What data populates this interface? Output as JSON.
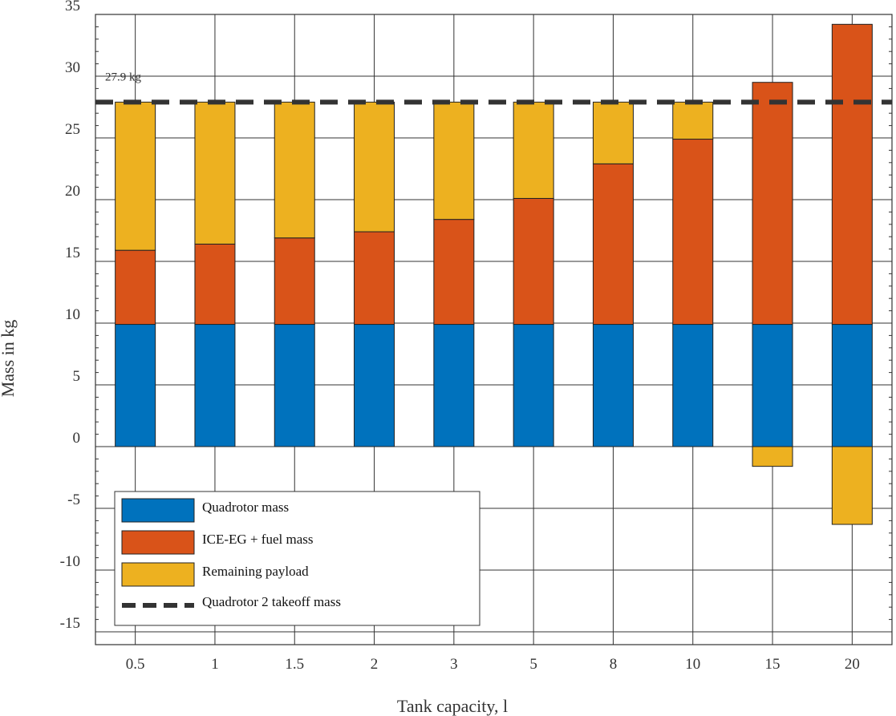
{
  "chart_data": {
    "type": "bar",
    "stacked": true,
    "xlabel": "Tank capacity, l",
    "ylabel": "Mass in kg",
    "ylim": [
      -16,
      35
    ],
    "yticks": [
      35,
      30,
      25,
      20,
      15,
      10,
      5,
      0,
      -5,
      -10,
      -15
    ],
    "ytick_labels": [
      "35",
      "30",
      "25",
      "20",
      "15",
      "10",
      "5",
      "0",
      "-5",
      "-10",
      "-15"
    ],
    "categories": [
      "0.5",
      "1",
      "1.5",
      "2",
      "3",
      "5",
      "8",
      "10",
      "15",
      "20"
    ],
    "grid": true,
    "legend_position": "bottom-left",
    "series": [
      {
        "name": "Quadrotor mass",
        "color": "#0072BD",
        "values": [
          9.9,
          9.9,
          9.9,
          9.9,
          9.9,
          9.9,
          9.9,
          9.9,
          9.9,
          9.9
        ]
      },
      {
        "name": "ICE-EG + fuel mass",
        "color": "#D95319",
        "values": [
          6.0,
          6.5,
          7.0,
          7.5,
          8.5,
          10.2,
          13.0,
          15.0,
          19.6,
          24.3
        ]
      },
      {
        "name": "Remaining payload",
        "color": "#EDB120",
        "values": [
          12.0,
          11.5,
          11.0,
          10.5,
          9.5,
          7.8,
          5.0,
          3.0,
          -1.6,
          -6.3
        ]
      }
    ],
    "reference_line": {
      "name": "Quadrotor 2 takeoff mass",
      "value": 27.9,
      "color": "#333333",
      "style": "dashed"
    },
    "annotations": [
      {
        "text": "27.9 kg"
      }
    ]
  }
}
